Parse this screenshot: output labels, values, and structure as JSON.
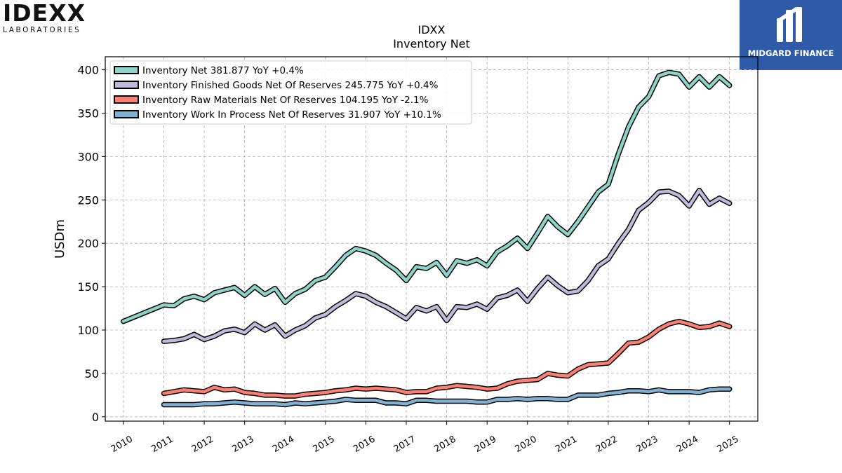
{
  "header": {
    "logo_left_word": "IDEXX",
    "logo_left_sub": "LABORATORIES",
    "logo_right_name": "MIDGARD FINANCE"
  },
  "chart_data": {
    "type": "line",
    "title": "IDXX",
    "subtitle": "Inventory Net",
    "ylabel": "USDm",
    "xlabel": "",
    "xlim": [
      2009.55,
      2025.7
    ],
    "ylim": [
      -5,
      415
    ],
    "yticks": [
      0,
      50,
      100,
      150,
      200,
      250,
      300,
      350,
      400
    ],
    "xticks": [
      "2010",
      "2011",
      "2012",
      "2013",
      "2014",
      "2015",
      "2016",
      "2017",
      "2018",
      "2019",
      "2020",
      "2021",
      "2022",
      "2023",
      "2024",
      "2025"
    ],
    "grid": true,
    "legend_position": "top-left",
    "series": [
      {
        "name": "Inventory Net",
        "legend": "Inventory Net  381.877 YoY +0.4%",
        "color": "#8dd3c7",
        "points": [
          [
            2010.0,
            110
          ],
          [
            2011.0,
            129
          ],
          [
            2011.25,
            128
          ],
          [
            2011.5,
            136
          ],
          [
            2011.75,
            139
          ],
          [
            2012.0,
            135
          ],
          [
            2012.25,
            143
          ],
          [
            2012.5,
            146
          ],
          [
            2012.75,
            149
          ],
          [
            2013.0,
            140
          ],
          [
            2013.25,
            150
          ],
          [
            2013.5,
            141
          ],
          [
            2013.75,
            148
          ],
          [
            2014.0,
            132
          ],
          [
            2014.25,
            142
          ],
          [
            2014.5,
            147
          ],
          [
            2014.75,
            157
          ],
          [
            2015.0,
            161
          ],
          [
            2015.25,
            173
          ],
          [
            2015.5,
            186
          ],
          [
            2015.75,
            194
          ],
          [
            2016.0,
            191
          ],
          [
            2016.25,
            186
          ],
          [
            2016.5,
            177
          ],
          [
            2016.75,
            169
          ],
          [
            2017.0,
            157
          ],
          [
            2017.25,
            173
          ],
          [
            2017.5,
            171
          ],
          [
            2017.75,
            178
          ],
          [
            2018.0,
            163
          ],
          [
            2018.25,
            180
          ],
          [
            2018.5,
            177
          ],
          [
            2018.75,
            181
          ],
          [
            2019.0,
            174
          ],
          [
            2019.25,
            190
          ],
          [
            2019.5,
            197
          ],
          [
            2019.75,
            206
          ],
          [
            2020.0,
            194
          ],
          [
            2020.25,
            212
          ],
          [
            2020.5,
            231
          ],
          [
            2020.75,
            219
          ],
          [
            2021.0,
            210
          ],
          [
            2021.25,
            225
          ],
          [
            2021.5,
            242
          ],
          [
            2021.75,
            259
          ],
          [
            2022.0,
            268
          ],
          [
            2022.25,
            303
          ],
          [
            2022.5,
            334
          ],
          [
            2022.75,
            357
          ],
          [
            2023.0,
            369
          ],
          [
            2023.25,
            393
          ],
          [
            2023.5,
            397
          ],
          [
            2023.75,
            395
          ],
          [
            2024.0,
            380
          ],
          [
            2024.25,
            392
          ],
          [
            2024.5,
            380
          ],
          [
            2024.75,
            392
          ],
          [
            2025.0,
            382
          ]
        ]
      },
      {
        "name": "Inventory Finished Goods Net Of Reserves",
        "legend": "Inventory Finished Goods Net Of Reserves  245.775 YoY +0.4%",
        "color": "#bebada",
        "points": [
          [
            2011.0,
            87
          ],
          [
            2011.25,
            88
          ],
          [
            2011.5,
            90
          ],
          [
            2011.75,
            95
          ],
          [
            2012.0,
            89
          ],
          [
            2012.25,
            93
          ],
          [
            2012.5,
            99
          ],
          [
            2012.75,
            101
          ],
          [
            2013.0,
            97
          ],
          [
            2013.25,
            107
          ],
          [
            2013.5,
            100
          ],
          [
            2013.75,
            106
          ],
          [
            2014.0,
            93
          ],
          [
            2014.25,
            100
          ],
          [
            2014.5,
            105
          ],
          [
            2014.75,
            114
          ],
          [
            2015.0,
            118
          ],
          [
            2015.25,
            127
          ],
          [
            2015.5,
            134
          ],
          [
            2015.75,
            142
          ],
          [
            2016.0,
            139
          ],
          [
            2016.25,
            132
          ],
          [
            2016.5,
            127
          ],
          [
            2016.75,
            120
          ],
          [
            2017.0,
            113
          ],
          [
            2017.25,
            126
          ],
          [
            2017.5,
            122
          ],
          [
            2017.75,
            127
          ],
          [
            2018.0,
            111
          ],
          [
            2018.25,
            127
          ],
          [
            2018.5,
            126
          ],
          [
            2018.75,
            130
          ],
          [
            2019.0,
            124
          ],
          [
            2019.25,
            137
          ],
          [
            2019.5,
            140
          ],
          [
            2019.75,
            146
          ],
          [
            2020.0,
            133
          ],
          [
            2020.25,
            148
          ],
          [
            2020.5,
            161
          ],
          [
            2020.75,
            151
          ],
          [
            2021.0,
            143
          ],
          [
            2021.25,
            145
          ],
          [
            2021.5,
            157
          ],
          [
            2021.75,
            174
          ],
          [
            2022.0,
            182
          ],
          [
            2022.25,
            200
          ],
          [
            2022.5,
            216
          ],
          [
            2022.75,
            238
          ],
          [
            2023.0,
            247
          ],
          [
            2023.25,
            259
          ],
          [
            2023.5,
            260
          ],
          [
            2023.75,
            255
          ],
          [
            2024.0,
            243
          ],
          [
            2024.25,
            261
          ],
          [
            2024.5,
            245
          ],
          [
            2024.75,
            252
          ],
          [
            2025.0,
            246
          ]
        ]
      },
      {
        "name": "Inventory Raw Materials Net Of Reserves",
        "legend": "Inventory Raw Materials Net Of Reserves  104.195 YoY -2.1%",
        "color": "#fb8072",
        "points": [
          [
            2011.0,
            27
          ],
          [
            2011.25,
            29
          ],
          [
            2011.5,
            31
          ],
          [
            2011.75,
            30
          ],
          [
            2012.0,
            29
          ],
          [
            2012.25,
            34
          ],
          [
            2012.5,
            31
          ],
          [
            2012.75,
            32
          ],
          [
            2013.0,
            28
          ],
          [
            2013.25,
            27
          ],
          [
            2013.5,
            25
          ],
          [
            2013.75,
            25
          ],
          [
            2014.0,
            24
          ],
          [
            2014.25,
            24
          ],
          [
            2014.5,
            26
          ],
          [
            2014.75,
            27
          ],
          [
            2015.0,
            28
          ],
          [
            2015.25,
            30
          ],
          [
            2015.5,
            31
          ],
          [
            2015.75,
            33
          ],
          [
            2016.0,
            32
          ],
          [
            2016.25,
            33
          ],
          [
            2016.5,
            32
          ],
          [
            2016.75,
            31
          ],
          [
            2017.0,
            28
          ],
          [
            2017.25,
            29
          ],
          [
            2017.5,
            29
          ],
          [
            2017.75,
            33
          ],
          [
            2018.0,
            34
          ],
          [
            2018.25,
            36
          ],
          [
            2018.5,
            35
          ],
          [
            2018.75,
            34
          ],
          [
            2019.0,
            32
          ],
          [
            2019.25,
            33
          ],
          [
            2019.5,
            38
          ],
          [
            2019.75,
            41
          ],
          [
            2020.0,
            42
          ],
          [
            2020.25,
            43
          ],
          [
            2020.5,
            50
          ],
          [
            2020.75,
            48
          ],
          [
            2021.0,
            47
          ],
          [
            2021.25,
            55
          ],
          [
            2021.5,
            60
          ],
          [
            2021.75,
            61
          ],
          [
            2022.0,
            62
          ],
          [
            2022.25,
            73
          ],
          [
            2022.5,
            85
          ],
          [
            2022.75,
            86
          ],
          [
            2023.0,
            92
          ],
          [
            2023.25,
            101
          ],
          [
            2023.5,
            107
          ],
          [
            2023.75,
            110
          ],
          [
            2024.0,
            107
          ],
          [
            2024.25,
            103
          ],
          [
            2024.5,
            104
          ],
          [
            2024.75,
            108
          ],
          [
            2025.0,
            104
          ]
        ]
      },
      {
        "name": "Inventory Work In Process Net Of Reserves",
        "legend": "Inventory Work In Process Net Of Reserves  31.907 YoY +10.1%",
        "color": "#80b1d3",
        "points": [
          [
            2011.0,
            14
          ],
          [
            2011.25,
            14
          ],
          [
            2011.5,
            14
          ],
          [
            2011.75,
            14
          ],
          [
            2012.0,
            15
          ],
          [
            2012.25,
            15
          ],
          [
            2012.5,
            16
          ],
          [
            2012.75,
            17
          ],
          [
            2013.0,
            16
          ],
          [
            2013.25,
            15
          ],
          [
            2013.5,
            15
          ],
          [
            2013.75,
            15
          ],
          [
            2014.0,
            14
          ],
          [
            2014.25,
            16
          ],
          [
            2014.5,
            15
          ],
          [
            2014.75,
            16
          ],
          [
            2015.0,
            17
          ],
          [
            2015.25,
            18
          ],
          [
            2015.5,
            20
          ],
          [
            2015.75,
            19
          ],
          [
            2016.0,
            19
          ],
          [
            2016.25,
            19
          ],
          [
            2016.5,
            16
          ],
          [
            2016.75,
            16
          ],
          [
            2017.0,
            15
          ],
          [
            2017.25,
            19
          ],
          [
            2017.5,
            19
          ],
          [
            2017.75,
            18
          ],
          [
            2018.0,
            18
          ],
          [
            2018.25,
            18
          ],
          [
            2018.5,
            18
          ],
          [
            2018.75,
            17
          ],
          [
            2019.0,
            17
          ],
          [
            2019.25,
            20
          ],
          [
            2019.5,
            20
          ],
          [
            2019.75,
            21
          ],
          [
            2020.0,
            20
          ],
          [
            2020.25,
            21
          ],
          [
            2020.5,
            21
          ],
          [
            2020.75,
            20
          ],
          [
            2021.0,
            20
          ],
          [
            2021.25,
            25
          ],
          [
            2021.5,
            25
          ],
          [
            2021.75,
            25
          ],
          [
            2022.0,
            27
          ],
          [
            2022.25,
            28
          ],
          [
            2022.5,
            30
          ],
          [
            2022.75,
            30
          ],
          [
            2023.0,
            29
          ],
          [
            2023.25,
            31
          ],
          [
            2023.5,
            29
          ],
          [
            2023.75,
            29
          ],
          [
            2024.0,
            29
          ],
          [
            2024.25,
            28
          ],
          [
            2024.5,
            31
          ],
          [
            2024.75,
            32
          ],
          [
            2025.0,
            32
          ]
        ]
      }
    ]
  }
}
